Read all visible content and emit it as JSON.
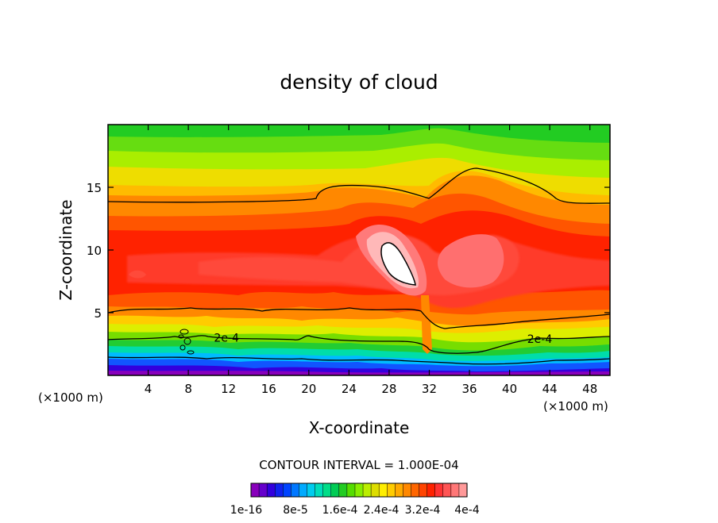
{
  "chart_data": {
    "type": "heatmap",
    "title": "density of cloud",
    "xlabel": "X-coordinate",
    "ylabel": "Z-coordinate",
    "x_unit_label": "(×1000 m)",
    "x_unit_label_right": "(×1000 m)",
    "xlim": [
      0,
      50
    ],
    "ylim": [
      0,
      20
    ],
    "x_ticks": [
      4,
      8,
      12,
      16,
      20,
      24,
      28,
      32,
      36,
      40,
      44,
      48
    ],
    "y_ticks": [
      5,
      10,
      15
    ],
    "x_tick_labels": [
      "4",
      "8",
      "12",
      "16",
      "20",
      "24",
      "28",
      "32",
      "36",
      "40",
      "44",
      "48"
    ],
    "y_tick_labels": [
      "5",
      "10",
      "15"
    ],
    "contour_interval_text": "CONTOUR INTERVAL = 1.000E-04",
    "contour_labels": [
      {
        "text": "2e-4",
        "x": 11.8,
        "z": 3.0
      },
      {
        "text": "2e-4",
        "x": 43.0,
        "z": 2.9
      }
    ],
    "colorbar": {
      "colors": [
        "#8800bb",
        "#6600cc",
        "#3300dd",
        "#1122ee",
        "#0044ff",
        "#0077ff",
        "#00aaff",
        "#00ccee",
        "#00ddbb",
        "#00dd88",
        "#00cc55",
        "#22cc22",
        "#55dd00",
        "#88ee00",
        "#bbee00",
        "#dddd00",
        "#ffee00",
        "#ffcc00",
        "#ffaa00",
        "#ff8800",
        "#ff6600",
        "#ff4400",
        "#ff2200",
        "#ff3333",
        "#ff5555",
        "#ff7777",
        "#ff9999"
      ],
      "tick_labels": [
        "1e-16",
        "8e-5",
        "1.6e-4",
        "2.4e-4",
        "3.2e-4",
        "4e-4"
      ]
    }
  }
}
